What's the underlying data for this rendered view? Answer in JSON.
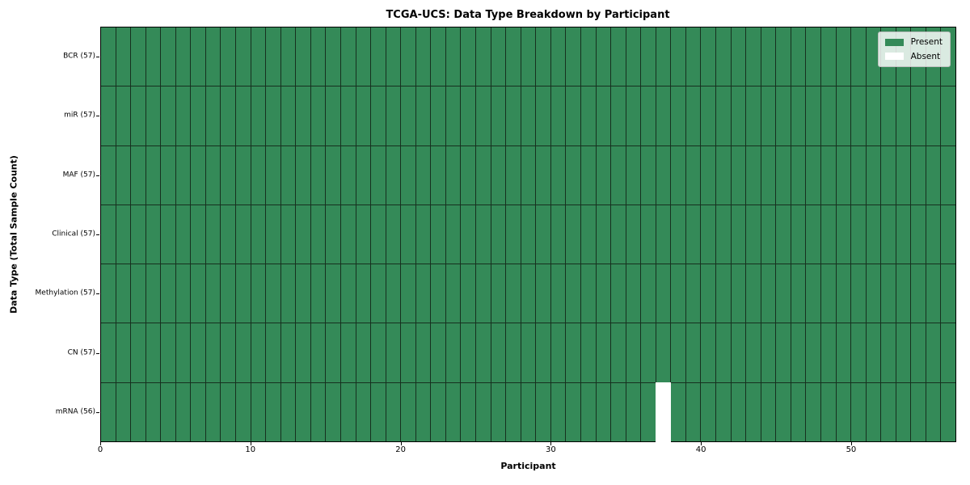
{
  "chart_data": {
    "type": "heatmap",
    "title": "TCGA-UCS: Data Type Breakdown by Participant",
    "xlabel": "Participant",
    "ylabel": "Data Type (Total Sample Count)",
    "x_range": [
      0,
      57
    ],
    "x_ticks": [
      0,
      10,
      20,
      30,
      40,
      50
    ],
    "n_participants": 57,
    "grid": true,
    "rows_top_to_bottom": [
      {
        "label": "BCR (57)",
        "data_type": "BCR",
        "total_samples": 57,
        "absent_participant_indices": []
      },
      {
        "label": "miR (57)",
        "data_type": "miR",
        "total_samples": 57,
        "absent_participant_indices": []
      },
      {
        "label": "MAF (57)",
        "data_type": "MAF",
        "total_samples": 57,
        "absent_participant_indices": []
      },
      {
        "label": "Clinical (57)",
        "data_type": "Clinical",
        "total_samples": 57,
        "absent_participant_indices": []
      },
      {
        "label": "Methylation (57)",
        "data_type": "Methylation",
        "total_samples": 57,
        "absent_participant_indices": []
      },
      {
        "label": "CN (57)",
        "data_type": "CN",
        "total_samples": 57,
        "absent_participant_indices": []
      },
      {
        "label": "mRNA (56)",
        "data_type": "mRNA",
        "total_samples": 56,
        "absent_participant_indices": [
          37
        ]
      }
    ],
    "legend": {
      "position": "upper right",
      "entries": [
        {
          "label": "Present",
          "color": "#348a58"
        },
        {
          "label": "Absent",
          "color": "#ffffff"
        }
      ]
    },
    "colors": {
      "present": "#348a58",
      "absent": "#ffffff",
      "cell_border": "#16301f",
      "frame": "#000000",
      "background": "#ffffff"
    }
  }
}
